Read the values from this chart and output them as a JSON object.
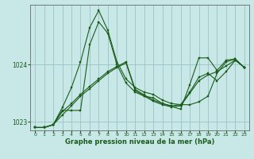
{
  "title": "",
  "xlabel": "Graphe pression niveau de la mer (hPa)",
  "ylabel": "",
  "bg_color": "#c8e8e8",
  "grid_color": "#a0c8c8",
  "line_color": "#1a5c1a",
  "marker_color": "#1a5c1a",
  "xlim": [
    -0.5,
    23.5
  ],
  "ylim": [
    1022.85,
    1025.05
  ],
  "yticks": [
    1023,
    1024
  ],
  "xticks": [
    0,
    1,
    2,
    3,
    4,
    5,
    6,
    7,
    8,
    9,
    10,
    11,
    12,
    13,
    14,
    15,
    16,
    17,
    18,
    19,
    20,
    21,
    22,
    23
  ],
  "series": [
    [
      1022.9,
      1022.9,
      1022.95,
      1023.25,
      1023.6,
      1024.05,
      1024.65,
      1024.95,
      1024.6,
      1024.05,
      1023.75,
      1023.6,
      1023.52,
      1023.48,
      1023.38,
      1023.32,
      1023.3,
      1023.3,
      1023.35,
      1023.45,
      1023.85,
      1024.05,
      1024.1,
      1023.95
    ],
    [
      1022.9,
      1022.9,
      1022.95,
      1023.2,
      1023.2,
      1023.2,
      1024.35,
      1024.75,
      1024.55,
      1024.0,
      1023.68,
      1023.52,
      1023.45,
      1023.42,
      1023.32,
      1023.27,
      1023.22,
      1023.65,
      1024.12,
      1024.12,
      1023.9,
      1024.08,
      1024.1,
      1023.95
    ],
    [
      1022.9,
      1022.9,
      1022.95,
      1023.18,
      1023.32,
      1023.48,
      1023.62,
      1023.75,
      1023.88,
      1023.97,
      1024.05,
      1023.57,
      1023.47,
      1023.38,
      1023.32,
      1023.28,
      1023.3,
      1023.52,
      1023.78,
      1023.85,
      1023.72,
      1023.88,
      1024.08,
      1023.95
    ],
    [
      1022.9,
      1022.9,
      1022.95,
      1023.12,
      1023.28,
      1023.45,
      1023.58,
      1023.72,
      1023.85,
      1023.95,
      1024.03,
      1023.55,
      1023.45,
      1023.36,
      1023.3,
      1023.26,
      1023.28,
      1023.5,
      1023.72,
      1023.82,
      1023.88,
      1023.98,
      1024.08,
      1023.95
    ]
  ]
}
